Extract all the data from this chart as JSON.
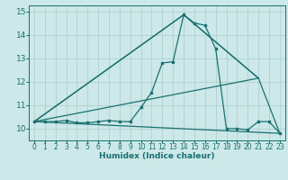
{
  "title": "",
  "xlabel": "Humidex (Indice chaleur)",
  "bg_color": "#cce8e8",
  "grid_color": "#aacccc",
  "line_color": "#1a7070",
  "xlim": [
    -0.5,
    23.5
  ],
  "ylim": [
    9.5,
    15.25
  ],
  "xticks": [
    0,
    1,
    2,
    3,
    4,
    5,
    6,
    7,
    8,
    9,
    10,
    11,
    12,
    13,
    14,
    15,
    16,
    17,
    18,
    19,
    20,
    21,
    22,
    23
  ],
  "yticks": [
    10,
    11,
    12,
    13,
    14,
    15
  ],
  "main_x": [
    0,
    1,
    2,
    3,
    4,
    5,
    6,
    7,
    8,
    9,
    10,
    11,
    12,
    13,
    14,
    15,
    16,
    17,
    18,
    19,
    20,
    21,
    22,
    23
  ],
  "main_y": [
    10.3,
    10.3,
    10.3,
    10.35,
    10.25,
    10.25,
    10.3,
    10.35,
    10.3,
    10.3,
    10.9,
    11.55,
    12.8,
    12.85,
    14.85,
    14.5,
    14.4,
    13.4,
    10.0,
    10.0,
    9.95,
    10.3,
    10.3,
    9.8
  ],
  "straight_lines": [
    {
      "x": [
        0,
        14,
        21
      ],
      "y": [
        10.3,
        14.85,
        12.15
      ]
    },
    {
      "x": [
        0,
        14,
        21
      ],
      "y": [
        10.3,
        14.85,
        12.15
      ]
    },
    {
      "x": [
        0,
        23
      ],
      "y": [
        10.3,
        9.8
      ]
    },
    {
      "x": [
        0,
        21,
        23
      ],
      "y": [
        10.3,
        12.15,
        9.8
      ]
    }
  ]
}
